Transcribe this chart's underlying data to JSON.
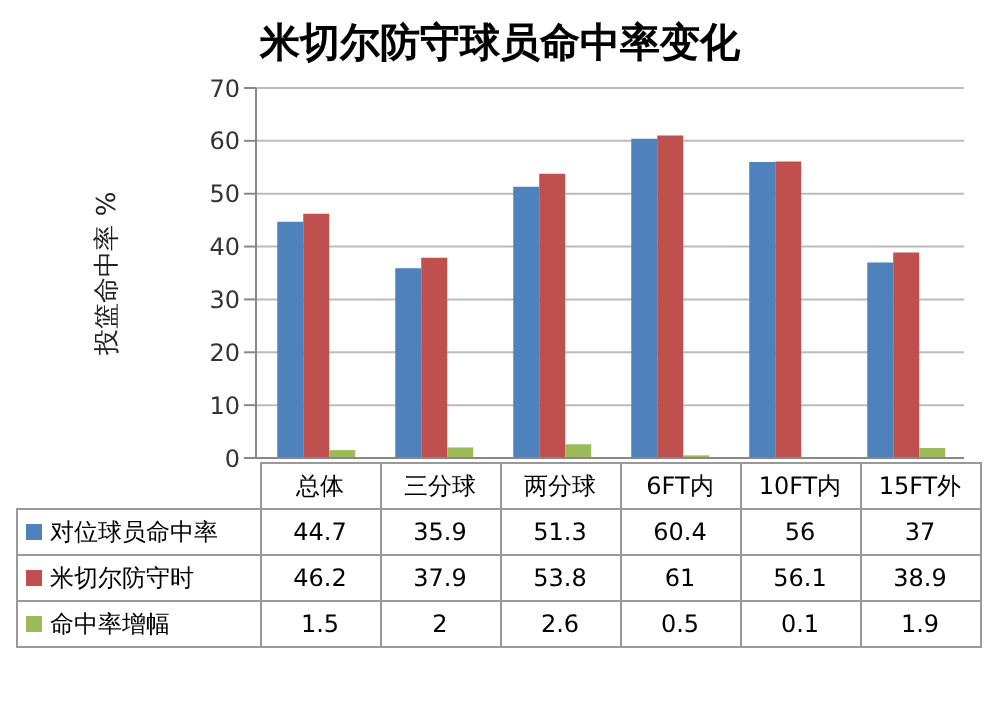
{
  "chart_data": {
    "type": "bar",
    "title": "米切尔防守球员命中率变化",
    "ylabel": "投篮命中率 %",
    "categories": [
      "总体",
      "三分球",
      "两分球",
      "6FT内",
      "10FT内",
      "15FT外"
    ],
    "series": [
      {
        "name": "对位球员命中率",
        "color": "#4f81bd",
        "values": [
          44.7,
          35.9,
          51.3,
          60.4,
          56,
          37
        ]
      },
      {
        "name": "米切尔防守时",
        "color": "#c0504d",
        "values": [
          46.2,
          37.9,
          53.8,
          61,
          56.1,
          38.9
        ]
      },
      {
        "name": "命中率增幅",
        "color": "#9bbb59",
        "values": [
          1.5,
          2,
          2.6,
          0.5,
          0.1,
          1.9
        ]
      }
    ],
    "ylim": [
      0,
      70
    ],
    "yticks": [
      0,
      10,
      20,
      30,
      40,
      50,
      60,
      70
    ],
    "grid": "y",
    "data_labels": true,
    "legend": "bottom"
  }
}
